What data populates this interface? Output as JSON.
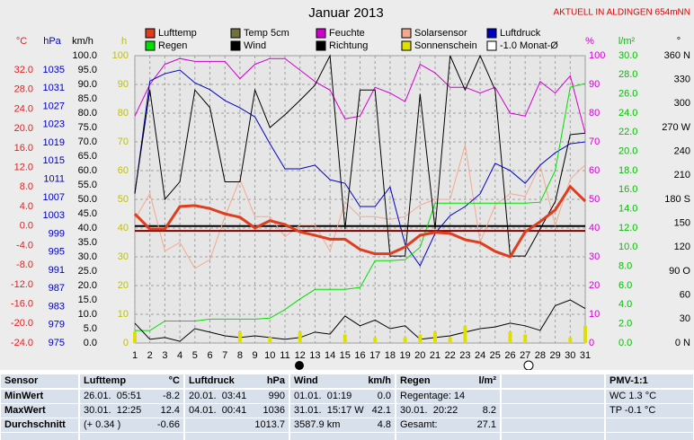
{
  "chart_data": {
    "type": "line",
    "title": "Januar 2013",
    "subtitle": "AKTUELL IN ALDINGEN 654mNN",
    "x": [
      1,
      2,
      3,
      4,
      5,
      6,
      7,
      8,
      9,
      10,
      11,
      12,
      13,
      14,
      15,
      16,
      17,
      18,
      19,
      20,
      21,
      22,
      23,
      24,
      25,
      26,
      27,
      28,
      29,
      30,
      31
    ],
    "xlim": [
      1,
      31
    ],
    "grid": true,
    "axes": {
      "temp": {
        "label": "°C",
        "color": "#e02020",
        "lim": [
          -24,
          34.95
        ],
        "ticks": [
          {
            "value": 32,
            "label": "32.0"
          },
          {
            "value": 28,
            "label": "28.0"
          },
          {
            "value": 24,
            "label": "24.0"
          },
          {
            "value": 20,
            "label": "20.0"
          },
          {
            "value": 16,
            "label": "16.0"
          },
          {
            "value": 12,
            "label": "12.0"
          },
          {
            "value": 8,
            "label": "8.0"
          },
          {
            "value": 4,
            "label": "4.0"
          },
          {
            "value": 0,
            "label": "0.0"
          },
          {
            "value": -4,
            "label": "-4.0"
          },
          {
            "value": -8,
            "label": "-8.0"
          },
          {
            "value": -12,
            "label": "-12.0"
          },
          {
            "value": -16,
            "label": "-16.0"
          },
          {
            "value": -20,
            "label": "-20.0"
          },
          {
            "value": -24,
            "label": "-24.0"
          }
        ]
      },
      "hpa": {
        "label": "hPa",
        "color": "#0000c0",
        "lim": [
          975,
          1038.16
        ],
        "ticks": [
          1035,
          1031,
          1027,
          1023,
          1019,
          1015,
          1011,
          1007,
          1003,
          999,
          995,
          991,
          987,
          983,
          979,
          975
        ]
      },
      "kmh": {
        "label": "km/h",
        "color": "#000000",
        "lim": [
          0,
          100
        ],
        "ticks": [
          {
            "value": 100,
            "label": "100.0"
          },
          {
            "value": 95,
            "label": "95.0"
          },
          {
            "value": 90,
            "label": "90.0"
          },
          {
            "value": 85,
            "label": "85.0"
          },
          {
            "value": 80,
            "label": "80.0"
          },
          {
            "value": 75,
            "label": "75.0"
          },
          {
            "value": 70,
            "label": "70.0"
          },
          {
            "value": 65,
            "label": "65.0"
          },
          {
            "value": 60,
            "label": "60.0"
          },
          {
            "value": 55,
            "label": "55.0"
          },
          {
            "value": 50,
            "label": "50.0"
          },
          {
            "value": 45,
            "label": "45.0"
          },
          {
            "value": 40,
            "label": "40.0"
          },
          {
            "value": 35,
            "label": "35.0"
          },
          {
            "value": 30,
            "label": "30.0"
          },
          {
            "value": 25,
            "label": "25.0"
          },
          {
            "value": 20,
            "label": "20.0"
          },
          {
            "value": 15,
            "label": "15.0"
          },
          {
            "value": 10,
            "label": "10.0"
          },
          {
            "value": 5,
            "label": "5.0"
          },
          {
            "value": 0,
            "label": "0.0"
          }
        ]
      },
      "h": {
        "label": "h",
        "color": "#c0c000",
        "lim": [
          0,
          100
        ],
        "ticks": [
          100,
          90,
          80,
          70,
          60,
          50,
          40,
          30,
          20,
          10,
          0
        ]
      },
      "pct": {
        "label": "%",
        "color": "#d000d0",
        "lim": [
          0,
          100
        ],
        "ticks": [
          100,
          90,
          80,
          70,
          60,
          50,
          40,
          30,
          20,
          10,
          0
        ]
      },
      "rain": {
        "label": "l/m²",
        "color": "#00c000",
        "lim": [
          0,
          30
        ],
        "ticks": [
          {
            "value": 30,
            "label": "30.0"
          },
          {
            "value": 28,
            "label": "28.0"
          },
          {
            "value": 26,
            "label": "26.0"
          },
          {
            "value": 24,
            "label": "24.0"
          },
          {
            "value": 22,
            "label": "22.0"
          },
          {
            "value": 20,
            "label": "20.0"
          },
          {
            "value": 18,
            "label": "18.0"
          },
          {
            "value": 16,
            "label": "16.0"
          },
          {
            "value": 14,
            "label": "14.0"
          },
          {
            "value": 12,
            "label": "12.0"
          },
          {
            "value": 10,
            "label": "10.0"
          },
          {
            "value": 8,
            "label": "8.0"
          },
          {
            "value": 6,
            "label": "6.0"
          },
          {
            "value": 4,
            "label": "4.0"
          },
          {
            "value": 2,
            "label": "2.0"
          },
          {
            "value": 0,
            "label": "0.0"
          }
        ]
      },
      "dir": {
        "label": "°",
        "color": "#000000",
        "lim": [
          0,
          360
        ],
        "ticks": [
          {
            "value": 360,
            "label": "360 N"
          },
          330,
          300,
          {
            "value": 270,
            "label": "270 W"
          },
          240,
          210,
          {
            "value": 180,
            "label": "180 S"
          },
          150,
          120,
          {
            "value": 90,
            "label": "90 O"
          },
          60,
          30,
          {
            "value": 0,
            "label": "0 N"
          }
        ]
      }
    },
    "series": [
      {
        "name": "Lufttemp",
        "color": "#e03c1e",
        "axis": "temp",
        "values": [
          2.5,
          -0.6,
          -0.6,
          4.0,
          4.2,
          3.6,
          2.5,
          1.8,
          -0.4,
          1.1,
          0.3,
          -1.2,
          -1.9,
          -2.7,
          -2.7,
          -4.8,
          -5.7,
          -5.7,
          -4.3,
          -1.9,
          -1.3,
          -1.5,
          -2.8,
          -3.4,
          -5.2,
          -6.3,
          -1.2,
          0.9,
          3.3,
          8.1,
          5.1
        ]
      },
      {
        "name": "Temp 5cm",
        "color": "#707040"
      },
      {
        "name": "Feuchte",
        "color": "#d000d0",
        "axis": "pct",
        "values": [
          79,
          90,
          97,
          99,
          98,
          98,
          98,
          92,
          97,
          99,
          99,
          95,
          91,
          88,
          78,
          79,
          89,
          87,
          84,
          97,
          94,
          89,
          89,
          87,
          89,
          80,
          79,
          91,
          87,
          93,
          73
        ]
      },
      {
        "name": "Solarsensor",
        "color": "#f4a890",
        "axis": "pct",
        "values": [
          43,
          52,
          32,
          35,
          26,
          29,
          44,
          57,
          44,
          44,
          37,
          41,
          41,
          32,
          49,
          44,
          44,
          43,
          44,
          48,
          50,
          50,
          69,
          35,
          48,
          52,
          51,
          62,
          41,
          57,
          62
        ]
      },
      {
        "name": "Luftdruck",
        "color": "#0000c0",
        "axis": "hpa",
        "values": [
          1007.8,
          1032.6,
          1034.2,
          1035,
          1032.2,
          1030.7,
          1028.3,
          1026.7,
          1024.7,
          1018.8,
          1013.3,
          1013.3,
          1014.1,
          1010.9,
          1010.1,
          1005,
          1005,
          1009.3,
          996.7,
          992,
          999.1,
          1003,
          1005,
          1007.8,
          1014.5,
          1012.9,
          1010.1,
          1014.1,
          1016.8,
          1018.8,
          1019.2
        ]
      },
      {
        "name": "Regen",
        "color": "#00e000",
        "axis": "rain",
        "values": [
          1.3,
          1.3,
          2.3,
          2.3,
          2.3,
          2.5,
          2.5,
          2.5,
          2.5,
          2.6,
          3.5,
          4.6,
          5.6,
          5.6,
          5.6,
          5.8,
          8.6,
          8.6,
          8.7,
          10,
          14.6,
          14.6,
          14.6,
          14.6,
          14.6,
          14.6,
          14.6,
          14.7,
          18,
          26.7,
          27.1
        ]
      },
      {
        "name": "Wind",
        "color": "#000000",
        "axis": "kmh",
        "values": [
          6.9,
          1.3,
          1.9,
          0.6,
          5,
          3.8,
          2.5,
          1.9,
          2.5,
          1.9,
          1.3,
          1.9,
          3.8,
          3.1,
          9.4,
          6,
          8,
          5,
          6,
          1.3,
          1.9,
          2.5,
          3.8,
          5,
          5.6,
          6.9,
          6,
          4.4,
          13,
          15,
          12
        ]
      },
      {
        "name": "Richtung",
        "color": "#000000",
        "axis": "dir",
        "values": [
          188,
          317,
          180,
          202,
          317,
          295,
          202,
          202,
          317,
          270,
          286,
          304,
          323,
          360,
          143,
          317,
          317,
          109,
          109,
          312,
          143,
          360,
          317,
          360,
          317,
          109,
          109,
          143,
          177,
          261,
          263
        ]
      },
      {
        "name": "Sonnenschein",
        "color": "#e0e000",
        "axis": "h",
        "kind": "bar",
        "values": [
          4,
          0,
          0,
          0,
          0,
          0,
          0,
          4,
          0,
          2,
          0,
          4,
          0,
          0,
          3,
          0,
          2,
          0,
          2,
          3,
          4,
          2,
          6,
          0,
          0,
          4,
          3,
          0,
          0,
          2,
          6
        ]
      },
      {
        "name": "-1.0 Monat-Ø",
        "color": "#800000",
        "axis": "temp",
        "mean": -1.0
      }
    ]
  },
  "table": {
    "columns": [
      {
        "title": "Sensor",
        "cells": [
          {
            "left": "MinWert"
          },
          {
            "left": "MaxWert"
          },
          {
            "left": "Durchschnitt"
          }
        ]
      },
      {
        "title": "Lufttemp",
        "unit": "°C",
        "cells": [
          {
            "left": "26.01.  05:51",
            "right": "-8.2"
          },
          {
            "left": "30.01.  12:25",
            "right": "12.4"
          },
          {
            "left": "(+ 0.34 )",
            "right": "-0.66"
          }
        ]
      },
      {
        "title": "Luftdruck",
        "unit": "hPa",
        "cells": [
          {
            "left": "20.01.  03:41",
            "right": "990"
          },
          {
            "left": "04.01.  00:41",
            "right": "1036"
          },
          {
            "right": "1013.7"
          }
        ]
      },
      {
        "title": "Wind",
        "unit": "km/h",
        "cells": [
          {
            "left": "01.01.  01:19",
            "right": "0.0"
          },
          {
            "left": "31.01.  15:17 W",
            "right": "42.1"
          },
          {
            "left": "3587.9 km",
            "right": "4.8"
          }
        ]
      },
      {
        "title": "Regen",
        "unit": "l/m²",
        "cells": [
          {
            "left": "Regentage: 14"
          },
          {
            "left": "30.01.  20:22",
            "right": "8.2"
          },
          {
            "left": "Gesamt:",
            "right": "27.1"
          }
        ]
      },
      {
        "cells": []
      },
      {
        "title": "PMV-1:1",
        "cells": [
          {
            "left": "WC 1.3 °C"
          },
          {
            "left": "TP -0.1 °C"
          }
        ]
      }
    ]
  }
}
